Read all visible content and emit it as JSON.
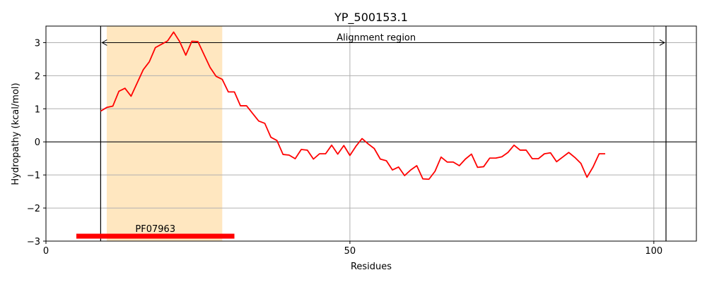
{
  "chart_data": {
    "type": "line",
    "title": "YP_500153.1",
    "xlabel": "Residues",
    "ylabel": "Hydropathy (kcal/mol)",
    "xlim": [
      0,
      107
    ],
    "ylim": [
      -3,
      3.5
    ],
    "xticks": [
      0,
      50,
      100
    ],
    "yticks": [
      -3,
      -2,
      -1,
      0,
      1,
      2,
      3
    ],
    "grid": true,
    "line_color": "#ff0000",
    "shaded_region": {
      "x": [
        10,
        29
      ],
      "color": "#ffe7c0"
    },
    "vertical_lines": [
      9,
      102
    ],
    "alignment_region": {
      "label": "Alignment region",
      "x": [
        9,
        102
      ],
      "y": 3
    },
    "domain_bar": {
      "label": "PF07963",
      "x": [
        5,
        31
      ],
      "y": -2.85,
      "color": "#ff0000"
    },
    "series": [
      {
        "x": [
          9,
          10,
          11,
          12,
          13,
          14,
          15,
          16,
          17,
          18,
          19,
          20,
          21,
          22,
          23,
          24,
          25,
          26,
          27,
          28,
          29,
          30,
          31,
          32,
          33,
          34,
          35,
          36,
          37,
          38,
          39,
          40,
          41,
          42,
          43,
          44,
          45,
          46,
          47,
          48,
          49,
          50,
          51,
          52,
          53,
          54,
          55,
          56,
          57,
          58,
          59,
          60,
          61,
          62,
          63,
          64,
          65,
          66,
          67,
          68,
          69,
          70,
          71,
          72,
          73,
          74,
          75,
          76,
          77,
          78,
          79,
          80,
          81,
          82,
          83,
          84,
          85,
          86,
          87,
          88,
          89,
          90,
          91,
          92
        ],
        "y": [
          0.93,
          1.04,
          1.08,
          1.53,
          1.62,
          1.38,
          1.78,
          2.18,
          2.42,
          2.85,
          2.95,
          3.05,
          3.32,
          3.03,
          2.62,
          3.04,
          3.03,
          2.64,
          2.25,
          1.98,
          1.89,
          1.51,
          1.51,
          1.09,
          1.09,
          0.86,
          0.63,
          0.56,
          0.14,
          0.04,
          -0.38,
          -0.4,
          -0.51,
          -0.23,
          -0.25,
          -0.52,
          -0.36,
          -0.36,
          -0.1,
          -0.37,
          -0.11,
          -0.41,
          -0.13,
          0.1,
          -0.06,
          -0.2,
          -0.52,
          -0.57,
          -0.85,
          -0.76,
          -1.02,
          -0.85,
          -0.72,
          -1.12,
          -1.13,
          -0.89,
          -0.46,
          -0.61,
          -0.61,
          -0.72,
          -0.52,
          -0.37,
          -0.77,
          -0.75,
          -0.49,
          -0.49,
          -0.45,
          -0.32,
          -0.1,
          -0.25,
          -0.25,
          -0.51,
          -0.51,
          -0.36,
          -0.33,
          -0.6,
          -0.46,
          -0.32,
          -0.47,
          -0.65,
          -1.07,
          -0.76,
          -0.36,
          -0.36
        ]
      }
    ]
  }
}
